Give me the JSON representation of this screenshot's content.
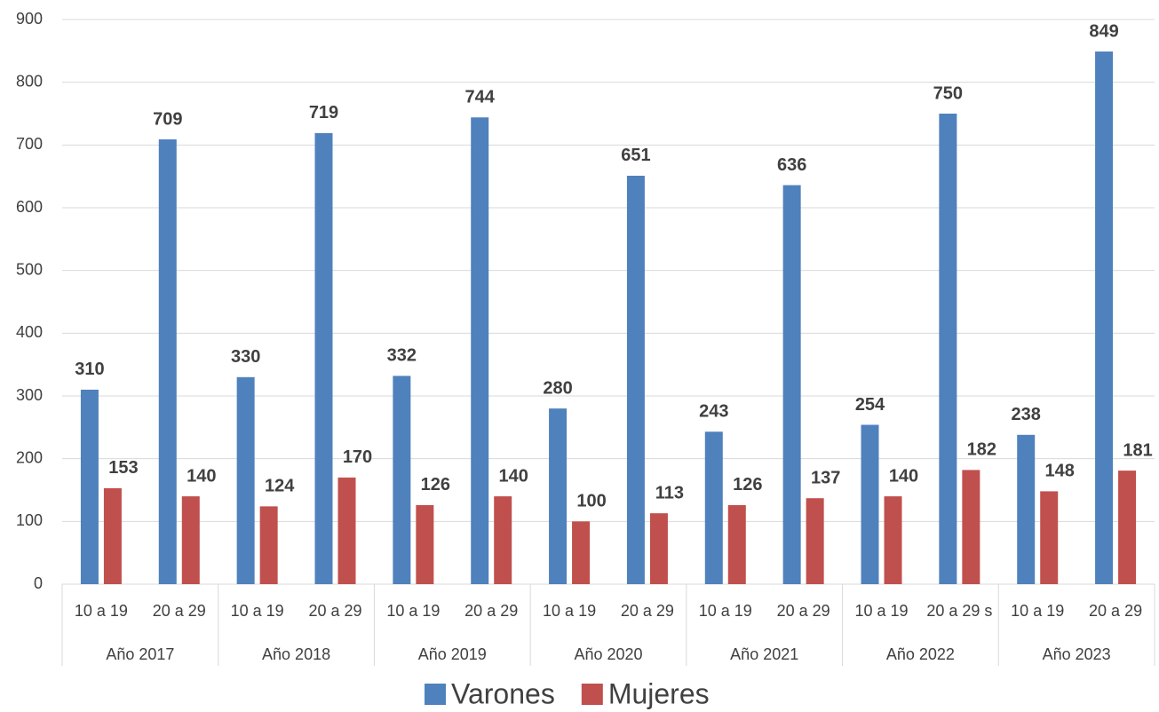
{
  "chart_data": {
    "type": "bar",
    "groups": [
      "Año 2017",
      "Año 2018",
      "Año 2019",
      "Año 2020",
      "Año 2021",
      "Año 2022",
      "Año 2023"
    ],
    "categories": [
      "10 a 19",
      "20 a 29",
      "10 a 19",
      "20 a 29",
      "10 a 19",
      "20 a 29",
      "10 a 19",
      "20 a 29",
      "10 a 19",
      "20 a 29",
      "10 a 19",
      "20 a 29 s",
      "10 a 19",
      "20 a 29"
    ],
    "series": [
      {
        "name": "Varones",
        "color": "#4f81bd",
        "values": [
          310,
          709,
          330,
          719,
          332,
          744,
          280,
          651,
          243,
          636,
          254,
          750,
          238,
          849
        ]
      },
      {
        "name": "Mujeres",
        "color": "#c0504d",
        "values": [
          153,
          140,
          124,
          170,
          126,
          140,
          100,
          113,
          126,
          137,
          140,
          182,
          148,
          181
        ]
      }
    ],
    "ylim": [
      0,
      900
    ],
    "yticks": [
      0,
      100,
      200,
      300,
      400,
      500,
      600,
      700,
      800,
      900
    ],
    "grid": true,
    "legend": "bottom"
  }
}
